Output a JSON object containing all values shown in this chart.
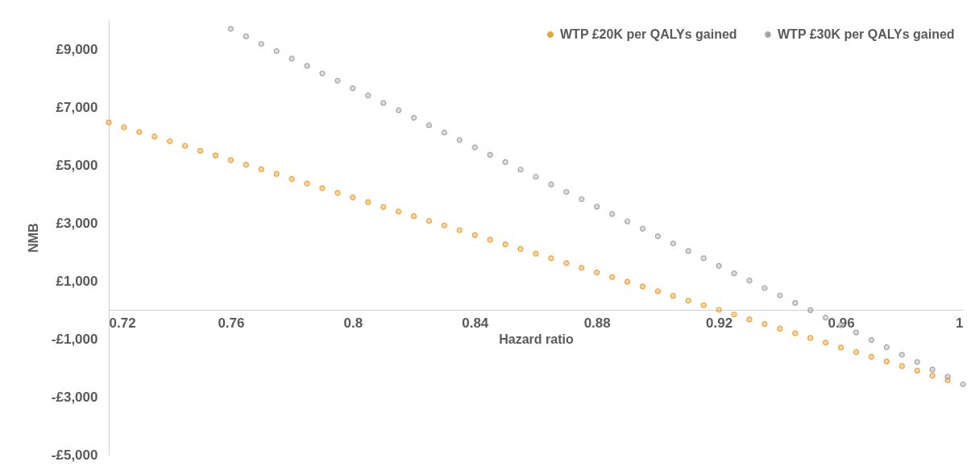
{
  "chart_data": {
    "type": "scatter",
    "xlabel": "Hazard ratio",
    "ylabel": "NMB",
    "xlim": [
      0.72,
      1
    ],
    "xticks": [
      0.72,
      0.76,
      0.8,
      0.84,
      0.88,
      0.92,
      0.96,
      1
    ],
    "ylim": [
      -5000,
      10000
    ],
    "yticks": [
      {
        "value": -5000,
        "label": "-£5,000"
      },
      {
        "value": -3000,
        "label": "-£3,000"
      },
      {
        "value": -1000,
        "label": "-£1,000"
      },
      {
        "value": 1000,
        "label": "£1,000"
      },
      {
        "value": 3000,
        "label": "£3,000"
      },
      {
        "value": 5000,
        "label": "£5,000"
      },
      {
        "value": 7000,
        "label": "£7,000"
      },
      {
        "value": 9000,
        "label": "£9,000"
      }
    ],
    "grid": false,
    "legend": "top right",
    "marker": "circle",
    "series": [
      {
        "name": "WTP £20K per QALYs gained",
        "color": "#f0a030",
        "x": [
          0.72,
          0.725,
          0.73,
          0.735,
          0.74,
          0.745,
          0.75,
          0.755,
          0.76,
          0.765,
          0.77,
          0.775,
          0.78,
          0.785,
          0.79,
          0.795,
          0.8,
          0.805,
          0.81,
          0.815,
          0.82,
          0.825,
          0.83,
          0.835,
          0.84,
          0.845,
          0.85,
          0.855,
          0.86,
          0.865,
          0.87,
          0.875,
          0.88,
          0.885,
          0.89,
          0.895,
          0.9,
          0.905,
          0.91,
          0.915,
          0.92,
          0.925,
          0.93,
          0.935,
          0.94,
          0.945,
          0.95,
          0.955,
          0.96,
          0.965,
          0.97,
          0.975,
          0.98,
          0.985,
          0.99,
          0.995
        ],
        "values": [
          6470,
          6300,
          6140,
          5980,
          5820,
          5660,
          5490,
          5330,
          5170,
          5010,
          4850,
          4690,
          4520,
          4360,
          4200,
          4040,
          3880,
          3720,
          3550,
          3390,
          3230,
          3070,
          2910,
          2750,
          2580,
          2420,
          2260,
          2100,
          1940,
          1780,
          1610,
          1450,
          1290,
          1130,
          970,
          810,
          640,
          480,
          320,
          160,
          0,
          -160,
          -330,
          -490,
          -650,
          -810,
          -970,
          -1130,
          -1300,
          -1460,
          -1620,
          -1780,
          -1940,
          -2100,
          -2270,
          -2430
        ]
      },
      {
        "name": "WTP £30K per QALYs gained",
        "color": "#a5a5a5",
        "x": [
          0.76,
          0.765,
          0.77,
          0.775,
          0.78,
          0.785,
          0.79,
          0.795,
          0.8,
          0.805,
          0.81,
          0.815,
          0.82,
          0.825,
          0.83,
          0.835,
          0.84,
          0.845,
          0.85,
          0.855,
          0.86,
          0.865,
          0.87,
          0.875,
          0.88,
          0.885,
          0.89,
          0.895,
          0.9,
          0.905,
          0.91,
          0.915,
          0.92,
          0.925,
          0.93,
          0.935,
          0.94,
          0.945,
          0.95,
          0.955,
          0.96,
          0.965,
          0.97,
          0.975,
          0.98,
          0.985,
          0.99,
          0.995,
          1
        ],
        "values": [
          9700,
          9440,
          9180,
          8930,
          8670,
          8420,
          8160,
          7910,
          7650,
          7400,
          7140,
          6890,
          6630,
          6370,
          6120,
          5860,
          5610,
          5350,
          5100,
          4840,
          4590,
          4330,
          4070,
          3820,
          3560,
          3310,
          3050,
          2800,
          2540,
          2290,
          2030,
          1780,
          1520,
          1260,
          1010,
          750,
          500,
          240,
          -10,
          -270,
          -530,
          -780,
          -1040,
          -1290,
          -1550,
          -1800,
          -2060,
          -2310,
          -2570
        ]
      }
    ]
  }
}
